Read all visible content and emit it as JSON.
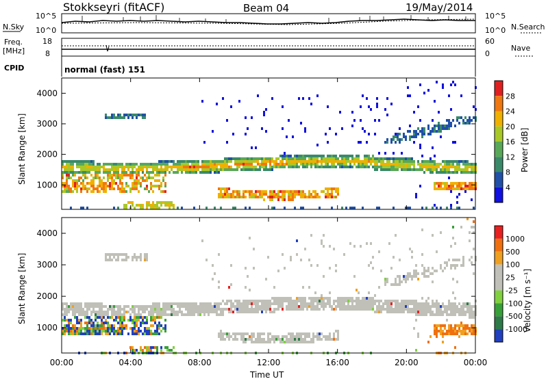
{
  "header": {
    "station": "Stokkseyri (fitACF)",
    "beam": "Beam 04",
    "date": "19/May/2014"
  },
  "top_panels": {
    "nsky_label": "N.Sky",
    "nsky_ticks": [
      "10^5",
      "10^0"
    ],
    "nsearch_label": "N.Search",
    "nsearch_ticks": [
      "10^5",
      "10^0"
    ],
    "freq_label": "Freq.",
    "freq_unit": "[MHz]",
    "freq_ticks": [
      "18",
      "8"
    ],
    "nave_label": "Nave",
    "nave_ticks": [
      "60",
      "0"
    ],
    "cpid_label": "CPID",
    "cpid_value": "normal (fast) 151"
  },
  "chart_data": [
    {
      "type": "heatmap",
      "name": "power",
      "ylabel": "Slant Range [km]",
      "xlabel": "Time UT",
      "ylim": [
        200,
        4500
      ],
      "xlim": [
        0,
        24
      ],
      "yticks": [
        "1000",
        "2000",
        "3000",
        "4000"
      ],
      "xticks": [
        "00:00",
        "04:00",
        "08:00",
        "12:00",
        "16:00",
        "20:00",
        "00:00"
      ],
      "colorbar": {
        "label": "Power [dB]",
        "ticks": [
          "4",
          "8",
          "12",
          "16",
          "20",
          "24",
          "28"
        ],
        "colors": [
          "#1010e0",
          "#2050a8",
          "#3a8a6a",
          "#58a858",
          "#a8c828",
          "#f0b000",
          "#f07810",
          "#e02020"
        ]
      }
    },
    {
      "type": "heatmap",
      "name": "velocity",
      "ylabel": "Slant Range [km]",
      "xlabel": "Time UT",
      "ylim": [
        200,
        4500
      ],
      "xlim": [
        0,
        24
      ],
      "yticks": [
        "1000",
        "2000",
        "3000",
        "4000"
      ],
      "xticks": [
        "00:00",
        "04:00",
        "08:00",
        "12:00",
        "16:00",
        "20:00",
        "00:00"
      ],
      "colorbar": {
        "label": "Velocity [m s⁻¹]",
        "ticks": [
          "1000",
          "500",
          "100",
          "25",
          "-25",
          "-100",
          "-500",
          "-1000"
        ],
        "colors": [
          "#2040c0",
          "#2e7a48",
          "#38a038",
          "#80d040",
          "#c0c0b8",
          "#c0c0b8",
          "#f0a020",
          "#f07010",
          "#e82020"
        ]
      }
    }
  ]
}
